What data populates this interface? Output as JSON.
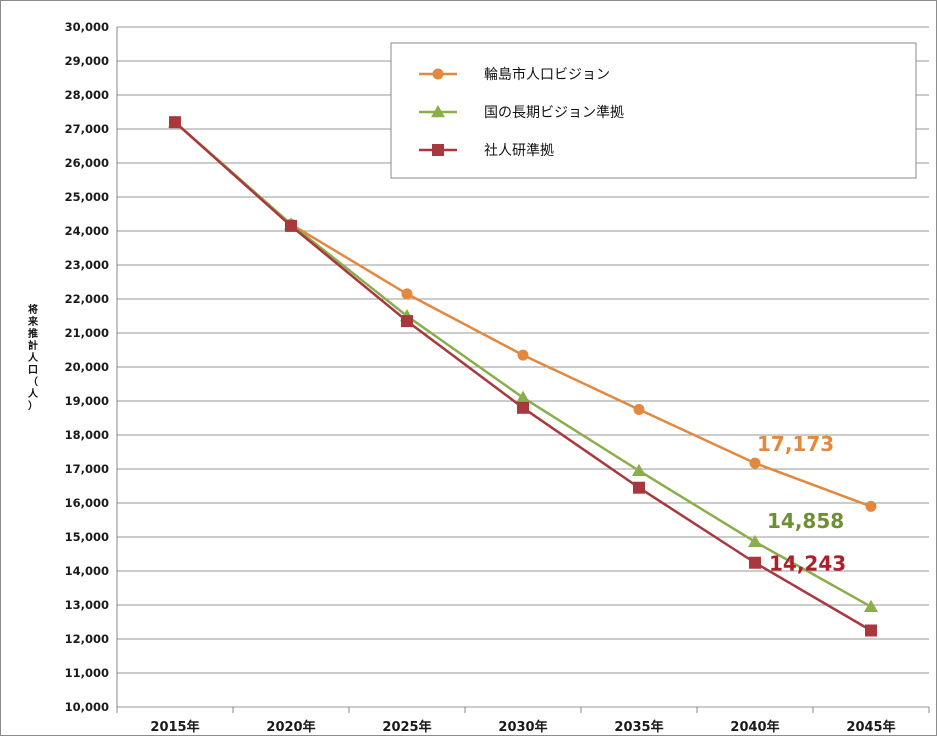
{
  "chart_data": {
    "type": "line",
    "ylabel": "将来推計人口（人）",
    "ylim": [
      10000,
      30000
    ],
    "yticks": [
      10000,
      11000,
      12000,
      13000,
      14000,
      15000,
      16000,
      17000,
      18000,
      19000,
      20000,
      21000,
      22000,
      23000,
      24000,
      25000,
      26000,
      27000,
      28000,
      29000,
      30000
    ],
    "ytick_labels": [
      "10,000",
      "11,000",
      "12,000",
      "13,000",
      "14,000",
      "15,000",
      "16,000",
      "17,000",
      "18,000",
      "19,000",
      "20,000",
      "21,000",
      "22,000",
      "23,000",
      "24,000",
      "25,000",
      "26,000",
      "27,000",
      "28,000",
      "29,000",
      "30,000"
    ],
    "categories": [
      "2015年",
      "2020年",
      "2025年",
      "2030年",
      "2035年",
      "2040年",
      "2045年"
    ],
    "grid": "horizontal",
    "legend_position": "top-right",
    "series": [
      {
        "name": "輪島市人口ビジョン",
        "color": "#E2893F",
        "marker": "circle",
        "values": [
          27200,
          24200,
          22150,
          20350,
          18750,
          17173,
          15900
        ]
      },
      {
        "name": "国の長期ビジョン準拠",
        "color": "#8AAE4A",
        "marker": "triangle",
        "values": [
          27200,
          24200,
          21500,
          19100,
          16950,
          14858,
          12950
        ]
      },
      {
        "name": "社人研準拠",
        "color": "#A8383E",
        "marker": "square",
        "values": [
          27200,
          24150,
          21350,
          18800,
          16450,
          14243,
          12250
        ]
      }
    ],
    "annotations": [
      {
        "text": "17,173",
        "series": 0,
        "category": 5,
        "color": "#E2893F"
      },
      {
        "text": "14,858",
        "series": 1,
        "category": 5,
        "color": "#6F8F33"
      },
      {
        "text": "14,243",
        "series": 2,
        "category": 5,
        "color": "#B01E2A"
      }
    ]
  }
}
